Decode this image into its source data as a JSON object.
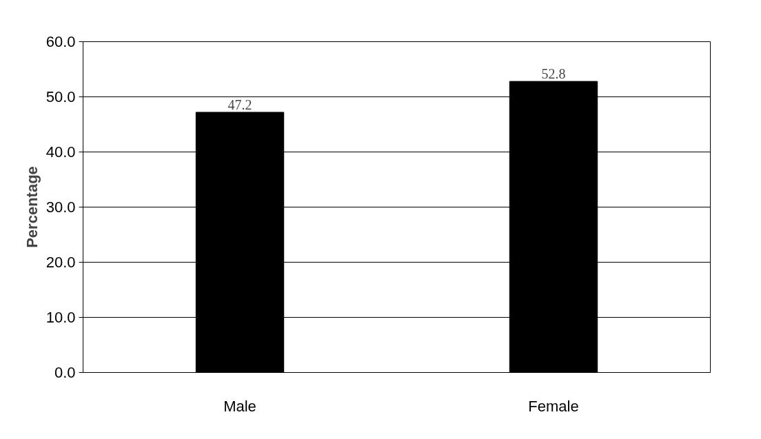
{
  "chart_data": {
    "type": "bar",
    "ylabel": "Percentage",
    "categories": [
      "Male",
      "Female"
    ],
    "values": [
      47.2,
      52.8
    ],
    "color": "#000000",
    "ylim": [
      0,
      60
    ],
    "yticks": [
      {
        "value": 0,
        "label": "0.0"
      },
      {
        "value": 10,
        "label": "10.0"
      },
      {
        "value": 20,
        "label": "20.0"
      },
      {
        "value": 30,
        "label": "30.0"
      },
      {
        "value": 40,
        "label": "40.0"
      },
      {
        "value": 50,
        "label": "50.0"
      },
      {
        "value": 60,
        "label": "60.0"
      }
    ],
    "grid": "y",
    "data_labels": true
  }
}
